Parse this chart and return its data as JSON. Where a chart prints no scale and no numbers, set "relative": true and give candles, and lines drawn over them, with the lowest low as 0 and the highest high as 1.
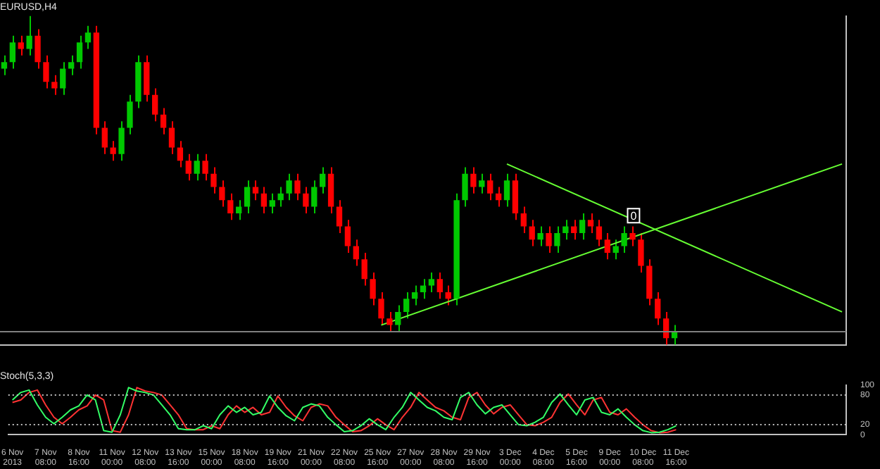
{
  "chart_data": [
    {
      "type": "candlestick",
      "title": "EURUSD,H4",
      "relative": true,
      "categories": [
        null,
        null,
        null,
        null,
        null,
        null,
        null,
        null,
        null,
        null,
        null,
        null,
        null,
        null,
        null,
        null,
        null,
        null,
        null,
        null,
        null,
        null,
        null,
        null,
        null,
        null,
        null,
        null,
        null,
        null,
        null,
        null,
        null,
        null,
        null,
        null,
        null,
        null,
        null,
        null,
        null,
        null,
        null,
        null,
        null,
        null,
        null,
        null,
        null,
        null,
        null,
        null,
        null,
        null,
        null,
        null,
        null,
        null,
        null,
        null,
        null,
        null,
        null,
        null,
        null,
        null,
        null,
        null,
        null,
        null,
        null,
        null,
        null,
        null,
        null,
        null,
        null,
        null,
        null,
        null,
        null,
        null,
        null,
        null,
        null,
        null,
        null,
        null,
        null,
        null,
        null,
        null,
        null,
        null,
        null,
        null,
        null,
        null,
        null,
        null,
        null
      ],
      "ohlc": [
        [
          0.84,
          0.88,
          0.82,
          0.86
        ],
        [
          0.86,
          0.94,
          0.84,
          0.92
        ],
        [
          0.92,
          0.94,
          0.88,
          0.9
        ],
        [
          0.9,
          1.0,
          0.88,
          0.94
        ],
        [
          0.94,
          0.96,
          0.84,
          0.86
        ],
        [
          0.86,
          0.88,
          0.78,
          0.8
        ],
        [
          0.8,
          0.82,
          0.76,
          0.78
        ],
        [
          0.78,
          0.86,
          0.76,
          0.84
        ],
        [
          0.84,
          0.88,
          0.82,
          0.86
        ],
        [
          0.86,
          0.94,
          0.84,
          0.92
        ],
        [
          0.92,
          0.97,
          0.9,
          0.95
        ],
        [
          0.95,
          0.97,
          0.64,
          0.66
        ],
        [
          0.66,
          0.68,
          0.58,
          0.6
        ],
        [
          0.6,
          0.62,
          0.56,
          0.58
        ],
        [
          0.58,
          0.68,
          0.56,
          0.66
        ],
        [
          0.66,
          0.76,
          0.64,
          0.74
        ],
        [
          0.74,
          0.88,
          0.72,
          0.86
        ],
        [
          0.86,
          0.88,
          0.74,
          0.76
        ],
        [
          0.76,
          0.78,
          0.68,
          0.7
        ],
        [
          0.7,
          0.72,
          0.64,
          0.66
        ],
        [
          0.66,
          0.68,
          0.58,
          0.6
        ],
        [
          0.6,
          0.62,
          0.54,
          0.56
        ],
        [
          0.56,
          0.58,
          0.5,
          0.52
        ],
        [
          0.52,
          0.58,
          0.5,
          0.56
        ],
        [
          0.56,
          0.58,
          0.5,
          0.52
        ],
        [
          0.52,
          0.54,
          0.46,
          0.48
        ],
        [
          0.48,
          0.5,
          0.42,
          0.44
        ],
        [
          0.44,
          0.46,
          0.38,
          0.4
        ],
        [
          0.4,
          0.44,
          0.38,
          0.42
        ],
        [
          0.42,
          0.5,
          0.4,
          0.48
        ],
        [
          0.48,
          0.5,
          0.44,
          0.46
        ],
        [
          0.46,
          0.48,
          0.4,
          0.42
        ],
        [
          0.42,
          0.46,
          0.4,
          0.44
        ],
        [
          0.44,
          0.48,
          0.42,
          0.46
        ],
        [
          0.46,
          0.52,
          0.44,
          0.5
        ],
        [
          0.5,
          0.52,
          0.44,
          0.46
        ],
        [
          0.46,
          0.48,
          0.4,
          0.42
        ],
        [
          0.42,
          0.5,
          0.4,
          0.48
        ],
        [
          0.48,
          0.54,
          0.46,
          0.52
        ],
        [
          0.52,
          0.54,
          0.4,
          0.42
        ],
        [
          0.42,
          0.44,
          0.34,
          0.36
        ],
        [
          0.36,
          0.38,
          0.28,
          0.3
        ],
        [
          0.3,
          0.32,
          0.24,
          0.26
        ],
        [
          0.26,
          0.28,
          0.18,
          0.2
        ],
        [
          0.2,
          0.22,
          0.12,
          0.14
        ],
        [
          0.14,
          0.16,
          0.06,
          0.08
        ],
        [
          0.08,
          0.1,
          0.04,
          0.06
        ],
        [
          0.06,
          0.12,
          0.04,
          0.1
        ],
        [
          0.1,
          0.16,
          0.08,
          0.14
        ],
        [
          0.14,
          0.18,
          0.12,
          0.16
        ],
        [
          0.16,
          0.2,
          0.14,
          0.18
        ],
        [
          0.18,
          0.22,
          0.16,
          0.2
        ],
        [
          0.2,
          0.22,
          0.14,
          0.16
        ],
        [
          0.16,
          0.18,
          0.12,
          0.14
        ],
        [
          0.14,
          0.46,
          0.12,
          0.44
        ],
        [
          0.44,
          0.54,
          0.42,
          0.52
        ],
        [
          0.52,
          0.54,
          0.46,
          0.48
        ],
        [
          0.48,
          0.52,
          0.46,
          0.5
        ],
        [
          0.5,
          0.52,
          0.44,
          0.46
        ],
        [
          0.46,
          0.48,
          0.42,
          0.44
        ],
        [
          0.44,
          0.52,
          0.42,
          0.5
        ],
        [
          0.5,
          0.52,
          0.38,
          0.4
        ],
        [
          0.4,
          0.42,
          0.34,
          0.36
        ],
        [
          0.36,
          0.38,
          0.3,
          0.32
        ],
        [
          0.32,
          0.36,
          0.3,
          0.34
        ],
        [
          0.34,
          0.36,
          0.28,
          0.3
        ],
        [
          0.3,
          0.36,
          0.28,
          0.34
        ],
        [
          0.34,
          0.38,
          0.32,
          0.36
        ],
        [
          0.36,
          0.38,
          0.32,
          0.34
        ],
        [
          0.34,
          0.4,
          0.32,
          0.38
        ],
        [
          0.38,
          0.4,
          0.34,
          0.36
        ],
        [
          0.36,
          0.38,
          0.3,
          0.32
        ],
        [
          0.32,
          0.34,
          0.26,
          0.28
        ],
        [
          0.28,
          0.32,
          0.26,
          0.3
        ],
        [
          0.3,
          0.36,
          0.28,
          0.34
        ],
        [
          0.34,
          0.36,
          0.3,
          0.32
        ],
        [
          0.32,
          0.34,
          0.22,
          0.24
        ],
        [
          0.24,
          0.26,
          0.12,
          0.14
        ],
        [
          0.14,
          0.16,
          0.06,
          0.08
        ],
        [
          0.08,
          0.1,
          0.0,
          0.02
        ],
        [
          0.02,
          0.06,
          0.0,
          0.04
        ],
        null,
        null,
        null,
        null,
        null,
        null,
        null,
        null,
        null,
        null,
        null,
        null,
        null,
        null,
        null,
        null,
        null,
        null,
        null,
        null
      ],
      "colors": [
        "#00c800",
        "#00c800",
        "#ff0000",
        "#00c800",
        "#ff0000",
        "#ff0000",
        "#ff0000",
        "#00c800",
        "#00c800",
        "#00c800",
        "#00c800",
        "#ff0000",
        "#ff0000",
        "#ff0000",
        "#00c800",
        "#00c800",
        "#00c800",
        "#ff0000",
        "#ff0000",
        "#ff0000",
        "#ff0000",
        "#ff0000",
        "#ff0000",
        "#00c800",
        "#ff0000",
        "#ff0000",
        "#ff0000",
        "#ff0000",
        "#00c800",
        "#00c800",
        "#ff0000",
        "#ff0000",
        "#00c800",
        "#00c800",
        "#00c800",
        "#ff0000",
        "#ff0000",
        "#00c800",
        "#00c800",
        "#ff0000",
        "#ff0000",
        "#ff0000",
        "#ff0000",
        "#ff0000",
        "#ff0000",
        "#ff0000",
        "#ff0000",
        "#00c800",
        "#00c800",
        "#00c800",
        "#00c800",
        "#00c800",
        "#ff0000",
        "#ff0000",
        "#00c800",
        "#00c800",
        "#ff0000",
        "#00c800",
        "#ff0000",
        "#ff0000",
        "#00c800",
        "#ff0000",
        "#ff0000",
        "#ff0000",
        "#00c800",
        "#ff0000",
        "#00c800",
        "#00c800",
        "#ff0000",
        "#00c800",
        "#ff0000",
        "#ff0000",
        "#ff0000",
        "#00c800",
        "#00c800",
        "#ff0000",
        "#ff0000",
        "#ff0000",
        "#ff0000",
        "#ff0000",
        "#00c800",
        null,
        null,
        null,
        null,
        null,
        null,
        null,
        null,
        null,
        null,
        null,
        null,
        null,
        null,
        null,
        null,
        null,
        null,
        null,
        null
      ],
      "series": [
        {
          "type": "line",
          "color": "#66ff33",
          "values": [
            null,
            null,
            null,
            null,
            null,
            null,
            null,
            null,
            null,
            null,
            null,
            null,
            null,
            null,
            null,
            null,
            null,
            null,
            null,
            null,
            null,
            null,
            null,
            null,
            null,
            null,
            null,
            null,
            null,
            null,
            null,
            null,
            null,
            null,
            null,
            null,
            null,
            null,
            null,
            null,
            null,
            null,
            null,
            null,
            null,
            0.06,
            null,
            null,
            null,
            null,
            null,
            null,
            null,
            null,
            null,
            null,
            null,
            null,
            null,
            null,
            null,
            null,
            null,
            null,
            null,
            null,
            null,
            null,
            null,
            null,
            null,
            null,
            null,
            null,
            null,
            null,
            null,
            null,
            null,
            null,
            null,
            null,
            null,
            null,
            null,
            null,
            null,
            null,
            null,
            null,
            null,
            null,
            null,
            null,
            null,
            null,
            null,
            null,
            null,
            null,
            0.55
          ]
        },
        {
          "type": "line",
          "color": "#66ff33",
          "values": [
            null,
            null,
            null,
            null,
            null,
            null,
            null,
            null,
            null,
            null,
            null,
            null,
            null,
            null,
            null,
            null,
            null,
            null,
            null,
            null,
            null,
            null,
            null,
            null,
            null,
            null,
            null,
            null,
            null,
            null,
            null,
            null,
            null,
            null,
            null,
            null,
            null,
            null,
            null,
            null,
            null,
            null,
            null,
            null,
            null,
            null,
            null,
            null,
            null,
            null,
            null,
            null,
            null,
            null,
            null,
            null,
            null,
            null,
            null,
            null,
            0.55,
            null,
            null,
            null,
            null,
            null,
            null,
            null,
            null,
            null,
            null,
            null,
            null,
            null,
            null,
            null,
            null,
            null,
            null,
            null,
            null,
            null,
            null,
            null,
            null,
            null,
            null,
            null,
            null,
            null,
            null,
            null,
            null,
            null,
            null,
            null,
            null,
            null,
            null,
            null,
            0.1
          ]
        }
      ],
      "ref_lines": [
        {
          "axis": "y",
          "value": 0.04,
          "color": "#808080"
        }
      ],
      "annotations": [
        "0"
      ]
    },
    {
      "type": "line",
      "title": "Stoch(5,3,3)",
      "categories": [
        "6 Nov 2013",
        null,
        null,
        null,
        "7 Nov 08:00",
        null,
        null,
        null,
        "8 Nov 16:00",
        null,
        null,
        null,
        "11 Nov 00:00",
        null,
        null,
        null,
        "12 Nov 08:00",
        null,
        null,
        null,
        "13 Nov 16:00",
        null,
        null,
        null,
        "15 Nov 00:00",
        null,
        null,
        null,
        "18 Nov 08:00",
        null,
        null,
        null,
        "19 Nov 16:00",
        null,
        null,
        null,
        "21 Nov 00:00",
        null,
        null,
        null,
        "22 Nov 08:00",
        null,
        null,
        null,
        "25 Nov 16:00",
        null,
        null,
        null,
        "27 Nov 00:00",
        null,
        null,
        null,
        "28 Nov 08:00",
        null,
        null,
        null,
        "29 Nov 16:00",
        null,
        null,
        null,
        "3 Dec 00:00",
        null,
        null,
        null,
        "4 Dec 08:00",
        null,
        null,
        null,
        "5 Dec 16:00",
        null,
        null,
        null,
        "9 Dec 00:00",
        null,
        null,
        null,
        "10 Dec 08:00",
        null,
        null,
        null,
        "11 Dec 16:00",
        null,
        null,
        null,
        null,
        null,
        null,
        null,
        null,
        null,
        null,
        null,
        null,
        null,
        null,
        null,
        null,
        null,
        null,
        null,
        null
      ],
      "ylim": [
        0,
        100
      ],
      "yticks": [
        0,
        20,
        80,
        100
      ],
      "ref_lines": [
        {
          "axis": "y",
          "value": 20,
          "line_style": "dotted",
          "color": "#c0c0c0"
        },
        {
          "axis": "y",
          "value": 80,
          "line_style": "dotted",
          "color": "#c0c0c0"
        }
      ],
      "series": [
        {
          "color": "#33ff66",
          "values": [
            70,
            85,
            90,
            60,
            35,
            22,
            35,
            50,
            58,
            80,
            70,
            8,
            5,
            40,
            95,
            88,
            85,
            80,
            60,
            40,
            12,
            10,
            10,
            18,
            12,
            40,
            58,
            45,
            55,
            40,
            45,
            78,
            55,
            38,
            28,
            55,
            62,
            58,
            35,
            20,
            6,
            8,
            18,
            32,
            20,
            10,
            35,
            55,
            85,
            70,
            55,
            48,
            35,
            30,
            75,
            85,
            60,
            42,
            55,
            60,
            40,
            20,
            18,
            25,
            35,
            65,
            82,
            60,
            40,
            70,
            75,
            45,
            40,
            52,
            35,
            20,
            8,
            4,
            5,
            10,
            18,
            null,
            null,
            null,
            null,
            null,
            null,
            null,
            null,
            null,
            null,
            null,
            null,
            null,
            null,
            null,
            null,
            null,
            null,
            null,
            null
          ]
        },
        {
          "color": "#ff3333",
          "values": [
            65,
            70,
            85,
            90,
            60,
            35,
            22,
            35,
            50,
            58,
            80,
            70,
            8,
            5,
            40,
            95,
            88,
            85,
            80,
            60,
            40,
            12,
            10,
            10,
            18,
            12,
            40,
            58,
            45,
            55,
            40,
            45,
            78,
            55,
            38,
            28,
            55,
            62,
            58,
            35,
            20,
            6,
            8,
            18,
            32,
            20,
            10,
            35,
            55,
            85,
            70,
            55,
            48,
            35,
            30,
            75,
            85,
            60,
            42,
            55,
            60,
            40,
            20,
            18,
            25,
            35,
            65,
            82,
            60,
            40,
            70,
            75,
            45,
            40,
            52,
            35,
            20,
            8,
            4,
            5,
            10,
            null,
            null,
            null,
            null,
            null,
            null,
            null,
            null,
            null,
            null,
            null,
            null,
            null,
            null,
            null,
            null,
            null,
            null,
            null,
            null
          ]
        }
      ]
    }
  ]
}
